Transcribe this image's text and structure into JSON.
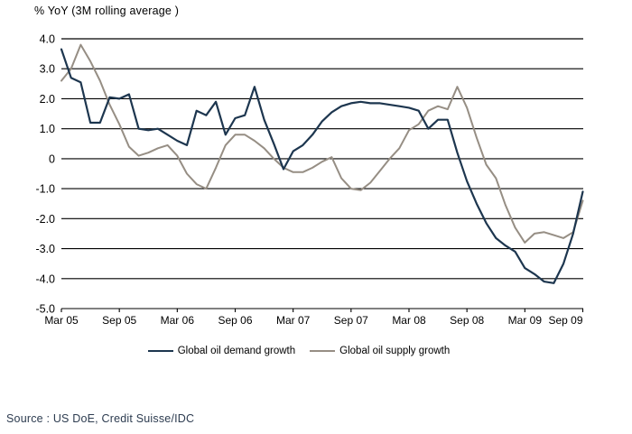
{
  "page": {
    "background": "#ffffff"
  },
  "chart": {
    "title": "% YoY (3M rolling average )",
    "source": "Source : US DoE, Credit Suisse/IDC",
    "legend": [
      {
        "label": "Global oil demand growth",
        "color": "#1d364f"
      },
      {
        "label": "Global oil supply growth",
        "color": "#968e84"
      }
    ]
  },
  "chart_data": {
    "type": "line",
    "title": "% YoY (3M rolling average )",
    "grid": "horizontal",
    "legend_position": "bottom",
    "ylim": [
      -5.0,
      4.0
    ],
    "y_ticks": [
      "4.0",
      "3.0",
      "2.0",
      "1.0",
      "0",
      "-1.0",
      "-2.0",
      "-3.0",
      "-4.0",
      "-5.0"
    ],
    "x_tick_labels": [
      "Mar 05",
      "Sep 05",
      "Mar 06",
      "Sep 06",
      "Mar 07",
      "Sep 07",
      "Mar 08",
      "Sep 08",
      "Mar 09",
      "Sep 09"
    ],
    "x_tick_indices": [
      0,
      6,
      12,
      18,
      24,
      30,
      36,
      42,
      48,
      54
    ],
    "x_unit": "month",
    "series": [
      {
        "name": "Global oil demand growth",
        "color": "#1d364f",
        "values": [
          3.65,
          2.7,
          2.55,
          1.2,
          1.2,
          2.05,
          2.0,
          2.15,
          1.0,
          0.95,
          1.0,
          0.8,
          0.6,
          0.45,
          1.6,
          1.45,
          1.9,
          0.8,
          1.35,
          1.45,
          2.4,
          1.3,
          0.5,
          -0.35,
          0.25,
          0.45,
          0.8,
          1.25,
          1.55,
          1.75,
          1.85,
          1.9,
          1.85,
          1.85,
          1.8,
          1.75,
          1.7,
          1.6,
          1.0,
          1.3,
          1.3,
          0.2,
          -0.75,
          -1.5,
          -2.15,
          -2.65,
          -2.9,
          -3.1,
          -3.65,
          -3.85,
          -4.1,
          -4.15,
          -3.5,
          -2.5,
          -1.1
        ]
      },
      {
        "name": "Global oil supply growth",
        "color": "#968e84",
        "values": [
          2.6,
          3.0,
          3.8,
          3.25,
          2.6,
          1.8,
          1.15,
          0.4,
          0.1,
          0.2,
          0.35,
          0.45,
          0.1,
          -0.5,
          -0.85,
          -1.0,
          -0.3,
          0.45,
          0.8,
          0.8,
          0.6,
          0.35,
          0.0,
          -0.3,
          -0.45,
          -0.45,
          -0.3,
          -0.1,
          0.05,
          -0.65,
          -1.0,
          -1.05,
          -0.8,
          -0.4,
          0.0,
          0.35,
          0.95,
          1.15,
          1.6,
          1.75,
          1.65,
          2.4,
          1.7,
          0.7,
          -0.2,
          -0.65,
          -1.55,
          -2.3,
          -2.8,
          -2.5,
          -2.45,
          -2.55,
          -2.65,
          -2.45,
          -1.4
        ]
      }
    ]
  }
}
